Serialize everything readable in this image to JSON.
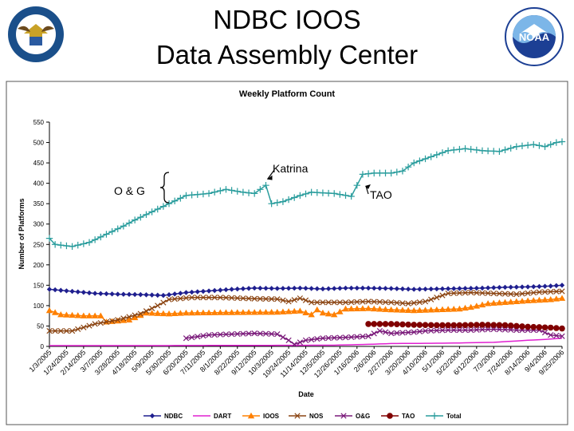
{
  "page": {
    "title_line1": "NDBC IOOS",
    "title_line2": "Data Assembly Center",
    "left_seal_text": "DEPARTMENT OF COMMERCE · UNITED STATES OF AMERICA",
    "right_seal_text": "NOAA · NATIONAL OCEANIC AND ATMOSPHERIC ADMINISTRATION · U.S. DEPARTMENT OF COMMERCE"
  },
  "chart_data": {
    "type": "line",
    "title": "Weekly Platform Count",
    "xlabel": "Date",
    "ylabel": "Number of Platforms",
    "ylim": [
      0,
      550
    ],
    "yticks": [
      0,
      50,
      100,
      150,
      200,
      250,
      300,
      350,
      400,
      450,
      500,
      550
    ],
    "grid": false,
    "legend_position": "bottom",
    "x_tick_labels": [
      "1/3/2005",
      "1/24/2005",
      "2/14/2005",
      "3/7/2005",
      "3/28/2005",
      "4/18/2005",
      "5/9/2005",
      "5/30/2005",
      "6/20/2005",
      "7/11/2005",
      "8/1/2005",
      "8/22/2005",
      "9/12/2005",
      "10/3/2005",
      "10/24/2005",
      "11/14/2005",
      "12/5/2005",
      "12/26/2005",
      "1/16/2006",
      "2/6/2006",
      "2/27/2006",
      "3/20/2006",
      "4/10/2006",
      "5/1/2006",
      "5/22/2006",
      "6/12/2006",
      "7/3/2006",
      "7/24/2006",
      "8/14/2006",
      "9/4/2006",
      "9/25/2006"
    ],
    "x_start_date": "2005-01-03",
    "x_interval_days": 7,
    "x_count": 91,
    "series": [
      {
        "name": "NDBC",
        "color": "#1f1f8f",
        "marker": "diamond",
        "points": [
          [
            0,
            140
          ],
          [
            4,
            135
          ],
          [
            8,
            130
          ],
          [
            12,
            128
          ],
          [
            16,
            127
          ],
          [
            20,
            125
          ],
          [
            24,
            132
          ],
          [
            28,
            136
          ],
          [
            32,
            140
          ],
          [
            36,
            143
          ],
          [
            40,
            142
          ],
          [
            44,
            143
          ],
          [
            48,
            141
          ],
          [
            52,
            143
          ],
          [
            56,
            143
          ],
          [
            60,
            142
          ],
          [
            64,
            140
          ],
          [
            68,
            141
          ],
          [
            72,
            142
          ],
          [
            76,
            143
          ],
          [
            80,
            145
          ],
          [
            84,
            146
          ],
          [
            88,
            148
          ],
          [
            90,
            150
          ]
        ]
      },
      {
        "name": "DART",
        "color": "#e020d0",
        "marker": "none",
        "points": [
          [
            0,
            2
          ],
          [
            20,
            2
          ],
          [
            50,
            3
          ],
          [
            56,
            5
          ],
          [
            60,
            7
          ],
          [
            70,
            8
          ],
          [
            78,
            10
          ],
          [
            84,
            15
          ],
          [
            88,
            18
          ],
          [
            90,
            20
          ]
        ]
      },
      {
        "name": "IOOS",
        "color": "#ff8000",
        "marker": "triangle",
        "points": [
          [
            0,
            88
          ],
          [
            2,
            78
          ],
          [
            6,
            75
          ],
          [
            9,
            75
          ],
          [
            10,
            60
          ],
          [
            14,
            65
          ],
          [
            17,
            82
          ],
          [
            21,
            80
          ],
          [
            24,
            82
          ],
          [
            30,
            83
          ],
          [
            40,
            84
          ],
          [
            44,
            87
          ],
          [
            46,
            78
          ],
          [
            47,
            90
          ],
          [
            48,
            82
          ],
          [
            50,
            78
          ],
          [
            52,
            92
          ],
          [
            56,
            93
          ],
          [
            60,
            90
          ],
          [
            64,
            88
          ],
          [
            68,
            90
          ],
          [
            72,
            92
          ],
          [
            74,
            96
          ],
          [
            77,
            105
          ],
          [
            80,
            108
          ],
          [
            84,
            112
          ],
          [
            88,
            115
          ],
          [
            90,
            118
          ]
        ]
      },
      {
        "name": "NOS",
        "color": "#8b4513",
        "marker": "x",
        "points": [
          [
            0,
            38
          ],
          [
            4,
            38
          ],
          [
            8,
            55
          ],
          [
            12,
            65
          ],
          [
            16,
            80
          ],
          [
            19,
            100
          ],
          [
            21,
            115
          ],
          [
            25,
            120
          ],
          [
            30,
            120
          ],
          [
            36,
            117
          ],
          [
            40,
            116
          ],
          [
            42,
            110
          ],
          [
            44,
            118
          ],
          [
            46,
            108
          ],
          [
            52,
            108
          ],
          [
            56,
            110
          ],
          [
            60,
            108
          ],
          [
            63,
            105
          ],
          [
            66,
            110
          ],
          [
            70,
            130
          ],
          [
            74,
            132
          ],
          [
            78,
            130
          ],
          [
            82,
            128
          ],
          [
            86,
            133
          ],
          [
            90,
            135
          ]
        ]
      },
      {
        "name": "O&G",
        "color": "#7a1a7a",
        "marker": "x",
        "points": [
          [
            24,
            20
          ],
          [
            28,
            28
          ],
          [
            32,
            30
          ],
          [
            36,
            32
          ],
          [
            40,
            30
          ],
          [
            42,
            15
          ],
          [
            43,
            5
          ],
          [
            45,
            15
          ],
          [
            48,
            20
          ],
          [
            52,
            22
          ],
          [
            56,
            25
          ],
          [
            58,
            38
          ],
          [
            60,
            32
          ],
          [
            64,
            35
          ],
          [
            66,
            38
          ],
          [
            70,
            40
          ],
          [
            74,
            40
          ],
          [
            78,
            42
          ],
          [
            82,
            40
          ],
          [
            86,
            40
          ],
          [
            88,
            28
          ],
          [
            90,
            25
          ]
        ]
      },
      {
        "name": "TAO",
        "color": "#800000",
        "marker": "circle",
        "points": [
          [
            56,
            55
          ],
          [
            60,
            55
          ],
          [
            64,
            53
          ],
          [
            68,
            52
          ],
          [
            72,
            52
          ],
          [
            76,
            53
          ],
          [
            80,
            52
          ],
          [
            84,
            48
          ],
          [
            88,
            46
          ],
          [
            90,
            44
          ]
        ]
      },
      {
        "name": "Total",
        "color": "#2a9d9d",
        "marker": "plus",
        "points": [
          [
            0,
            265
          ],
          [
            1,
            250
          ],
          [
            4,
            245
          ],
          [
            7,
            255
          ],
          [
            10,
            275
          ],
          [
            13,
            295
          ],
          [
            15,
            310
          ],
          [
            18,
            330
          ],
          [
            21,
            350
          ],
          [
            24,
            370
          ],
          [
            28,
            375
          ],
          [
            31,
            385
          ],
          [
            34,
            378
          ],
          [
            36,
            375
          ],
          [
            38,
            395
          ],
          [
            39,
            350
          ],
          [
            41,
            355
          ],
          [
            44,
            370
          ],
          [
            46,
            378
          ],
          [
            50,
            375
          ],
          [
            53,
            368
          ],
          [
            55,
            422
          ],
          [
            57,
            425
          ],
          [
            60,
            425
          ],
          [
            62,
            430
          ],
          [
            64,
            450
          ],
          [
            67,
            465
          ],
          [
            70,
            480
          ],
          [
            73,
            485
          ],
          [
            76,
            480
          ],
          [
            79,
            478
          ],
          [
            82,
            490
          ],
          [
            85,
            495
          ],
          [
            87,
            490
          ],
          [
            89,
            500
          ],
          [
            90,
            502
          ]
        ]
      }
    ],
    "annotations": [
      {
        "text": "Katrina",
        "target_x": 38,
        "target_y": 398
      },
      {
        "text": "TAO",
        "target_x": 55,
        "target_y": 385
      },
      {
        "text": "O & G",
        "target_x": 21,
        "target_y": 400
      }
    ]
  }
}
